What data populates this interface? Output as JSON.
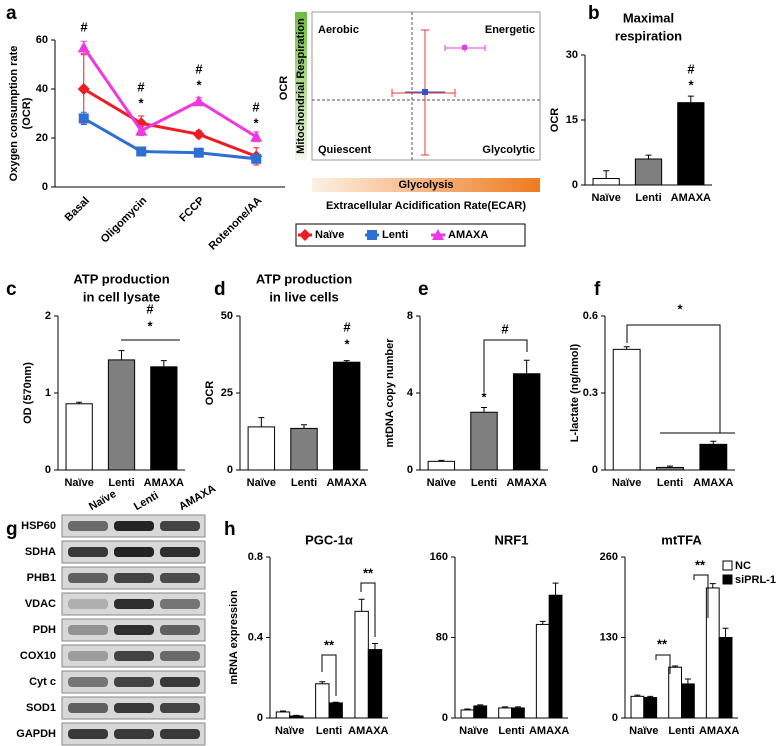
{
  "chart_data": [
    {
      "type": "line",
      "panel": "a",
      "ylabel": [
        "Oxygen consumption rate",
        "(OCR)"
      ],
      "categories": [
        "Basal",
        "Oligomycin",
        "FCCP",
        "Rotenone/AA"
      ],
      "ylim": [
        0,
        60
      ],
      "yticks": [
        0,
        20,
        40,
        60
      ],
      "series": [
        {
          "name": "Naïve",
          "color": "#ee1c25",
          "marker": "diamond",
          "values": [
            40,
            26,
            21.5,
            12.5
          ],
          "errors": [
            14,
            3,
            1.5,
            3.5
          ]
        },
        {
          "name": "Lenti",
          "color": "#2e6fd4",
          "marker": "square",
          "values": [
            28,
            14.5,
            14,
            11.5
          ],
          "errors": [
            2.5,
            1,
            1,
            1.5
          ]
        },
        {
          "name": "AMAXA",
          "color": "#ee38e0",
          "marker": "triangle",
          "values": [
            57,
            23,
            35,
            20.5
          ],
          "errors": [
            2.5,
            2,
            1.5,
            2
          ]
        }
      ],
      "annotations": [
        "#",
        "#",
        "*",
        "#",
        "*",
        "#",
        "*"
      ]
    },
    {
      "type": "bar",
      "panel": "b",
      "title": [
        "Maximal",
        "respiration"
      ],
      "ylabel": "OCR",
      "categories": [
        "Naïve",
        "Lenti",
        "AMAXA"
      ],
      "colors": [
        "#ffffff",
        "#7f7f7f",
        "#000000"
      ],
      "values": [
        1.5,
        6,
        19
      ],
      "errors": [
        1.8,
        0.9,
        1.5
      ],
      "ylim": [
        0,
        30
      ],
      "yticks": [
        0,
        15,
        30
      ],
      "annotations": [
        "#",
        "*"
      ]
    },
    {
      "type": "bar",
      "panel": "c",
      "title": [
        "ATP production",
        "in cell lysate"
      ],
      "ylabel": "OD (570nm)",
      "categories": [
        "Naïve",
        "Lenti",
        "AMAXA"
      ],
      "colors": [
        "#ffffff",
        "#7f7f7f",
        "#000000"
      ],
      "values": [
        0.86,
        1.43,
        1.34
      ],
      "errors": [
        0.02,
        0.12,
        0.08
      ],
      "ylim": [
        0,
        2
      ],
      "yticks": [
        0,
        1,
        2
      ],
      "annotations": [
        "#",
        "*"
      ]
    },
    {
      "type": "bar",
      "panel": "d",
      "title": [
        "ATP production",
        "in live cells"
      ],
      "ylabel": "OCR",
      "categories": [
        "Naïve",
        "Lenti",
        "AMAXA"
      ],
      "colors": [
        "#ffffff",
        "#7f7f7f",
        "#000000"
      ],
      "values": [
        14,
        13.5,
        35
      ],
      "errors": [
        3,
        1.2,
        0.5
      ],
      "ylim": [
        0,
        50
      ],
      "yticks": [
        0,
        25,
        50
      ],
      "annotations": [
        "#",
        "*"
      ]
    },
    {
      "type": "bar",
      "panel": "e",
      "ylabel": "mtDNA copy number",
      "categories": [
        "Naïve",
        "Lenti",
        "AMAXA"
      ],
      "colors": [
        "#ffffff",
        "#7f7f7f",
        "#000000"
      ],
      "values": [
        0.45,
        3,
        5
      ],
      "errors": [
        0.05,
        0.25,
        0.7
      ],
      "ylim": [
        0,
        8
      ],
      "yticks": [
        0,
        4,
        8
      ],
      "annotations": [
        "*",
        "#"
      ]
    },
    {
      "type": "bar",
      "panel": "f",
      "ylabel": "L-lactate (ng/nmol)",
      "categories": [
        "Naïve",
        "Lenti",
        "AMAXA"
      ],
      "colors": [
        "#ffffff",
        "#7f7f7f",
        "#000000"
      ],
      "values": [
        0.47,
        0.01,
        0.1
      ],
      "errors": [
        0.01,
        0.005,
        0.012
      ],
      "ylim": [
        0,
        0.6
      ],
      "yticks": [
        0,
        0.3,
        0.6
      ],
      "annotations": [
        "*"
      ]
    },
    {
      "type": "grouped_bar",
      "panel": "h",
      "ylabel": "mRNA expression",
      "categories": [
        "Naïve",
        "Lenti",
        "AMAXA"
      ],
      "legend": [
        {
          "name": "NC",
          "color": "#ffffff"
        },
        {
          "name": "siPRL-1",
          "color": "#000000"
        }
      ],
      "subplots": [
        {
          "title": "PGC-1α",
          "ylim": [
            0,
            0.8
          ],
          "yticks": [
            0,
            0.4,
            0.8
          ],
          "series": [
            {
              "values": [
                0.03,
                0.17,
                0.53
              ],
              "errors": [
                0.005,
                0.01,
                0.06
              ]
            },
            {
              "values": [
                0.01,
                0.075,
                0.34
              ],
              "errors": [
                0.003,
                0.003,
                0.03
              ]
            }
          ],
          "annotations": [
            "**",
            "**"
          ]
        },
        {
          "title": "NRF1",
          "ylim": [
            0,
            160
          ],
          "yticks": [
            0,
            80,
            160
          ],
          "series": [
            {
              "values": [
                8,
                10,
                93
              ],
              "errors": [
                1,
                1,
                3
              ]
            },
            {
              "values": [
                12,
                10,
                122
              ],
              "errors": [
                1,
                1,
                12
              ]
            }
          ],
          "annotations": []
        },
        {
          "title": "mtTFA",
          "ylim": [
            0,
            260
          ],
          "yticks": [
            0,
            130,
            260
          ],
          "series": [
            {
              "values": [
                35,
                82,
                210
              ],
              "errors": [
                2,
                2,
                7
              ]
            },
            {
              "values": [
                33,
                55,
                130
              ],
              "errors": [
                2,
                8,
                15
              ]
            }
          ],
          "annotations": [
            "**",
            "**"
          ]
        }
      ]
    }
  ],
  "energy_map": {
    "quadrants": [
      "Aerobic",
      "Energetic",
      "Quiescent",
      "Glycolytic"
    ],
    "ylabel": "OCR",
    "y_bar": "Mitochondrial Respiration",
    "x_bar": "Glycolysis",
    "xlabel": "Extracellular Acidification Rate(ECAR)"
  },
  "blot": {
    "panel": "g",
    "lanes": [
      "Naïve",
      "Lenti",
      "AMAXA"
    ],
    "proteins": [
      "HSP60",
      "SDHA",
      "PHB1",
      "VDAC",
      "PDH",
      "COX10",
      "Cyt c",
      "SOD1",
      "GAPDH"
    ]
  }
}
